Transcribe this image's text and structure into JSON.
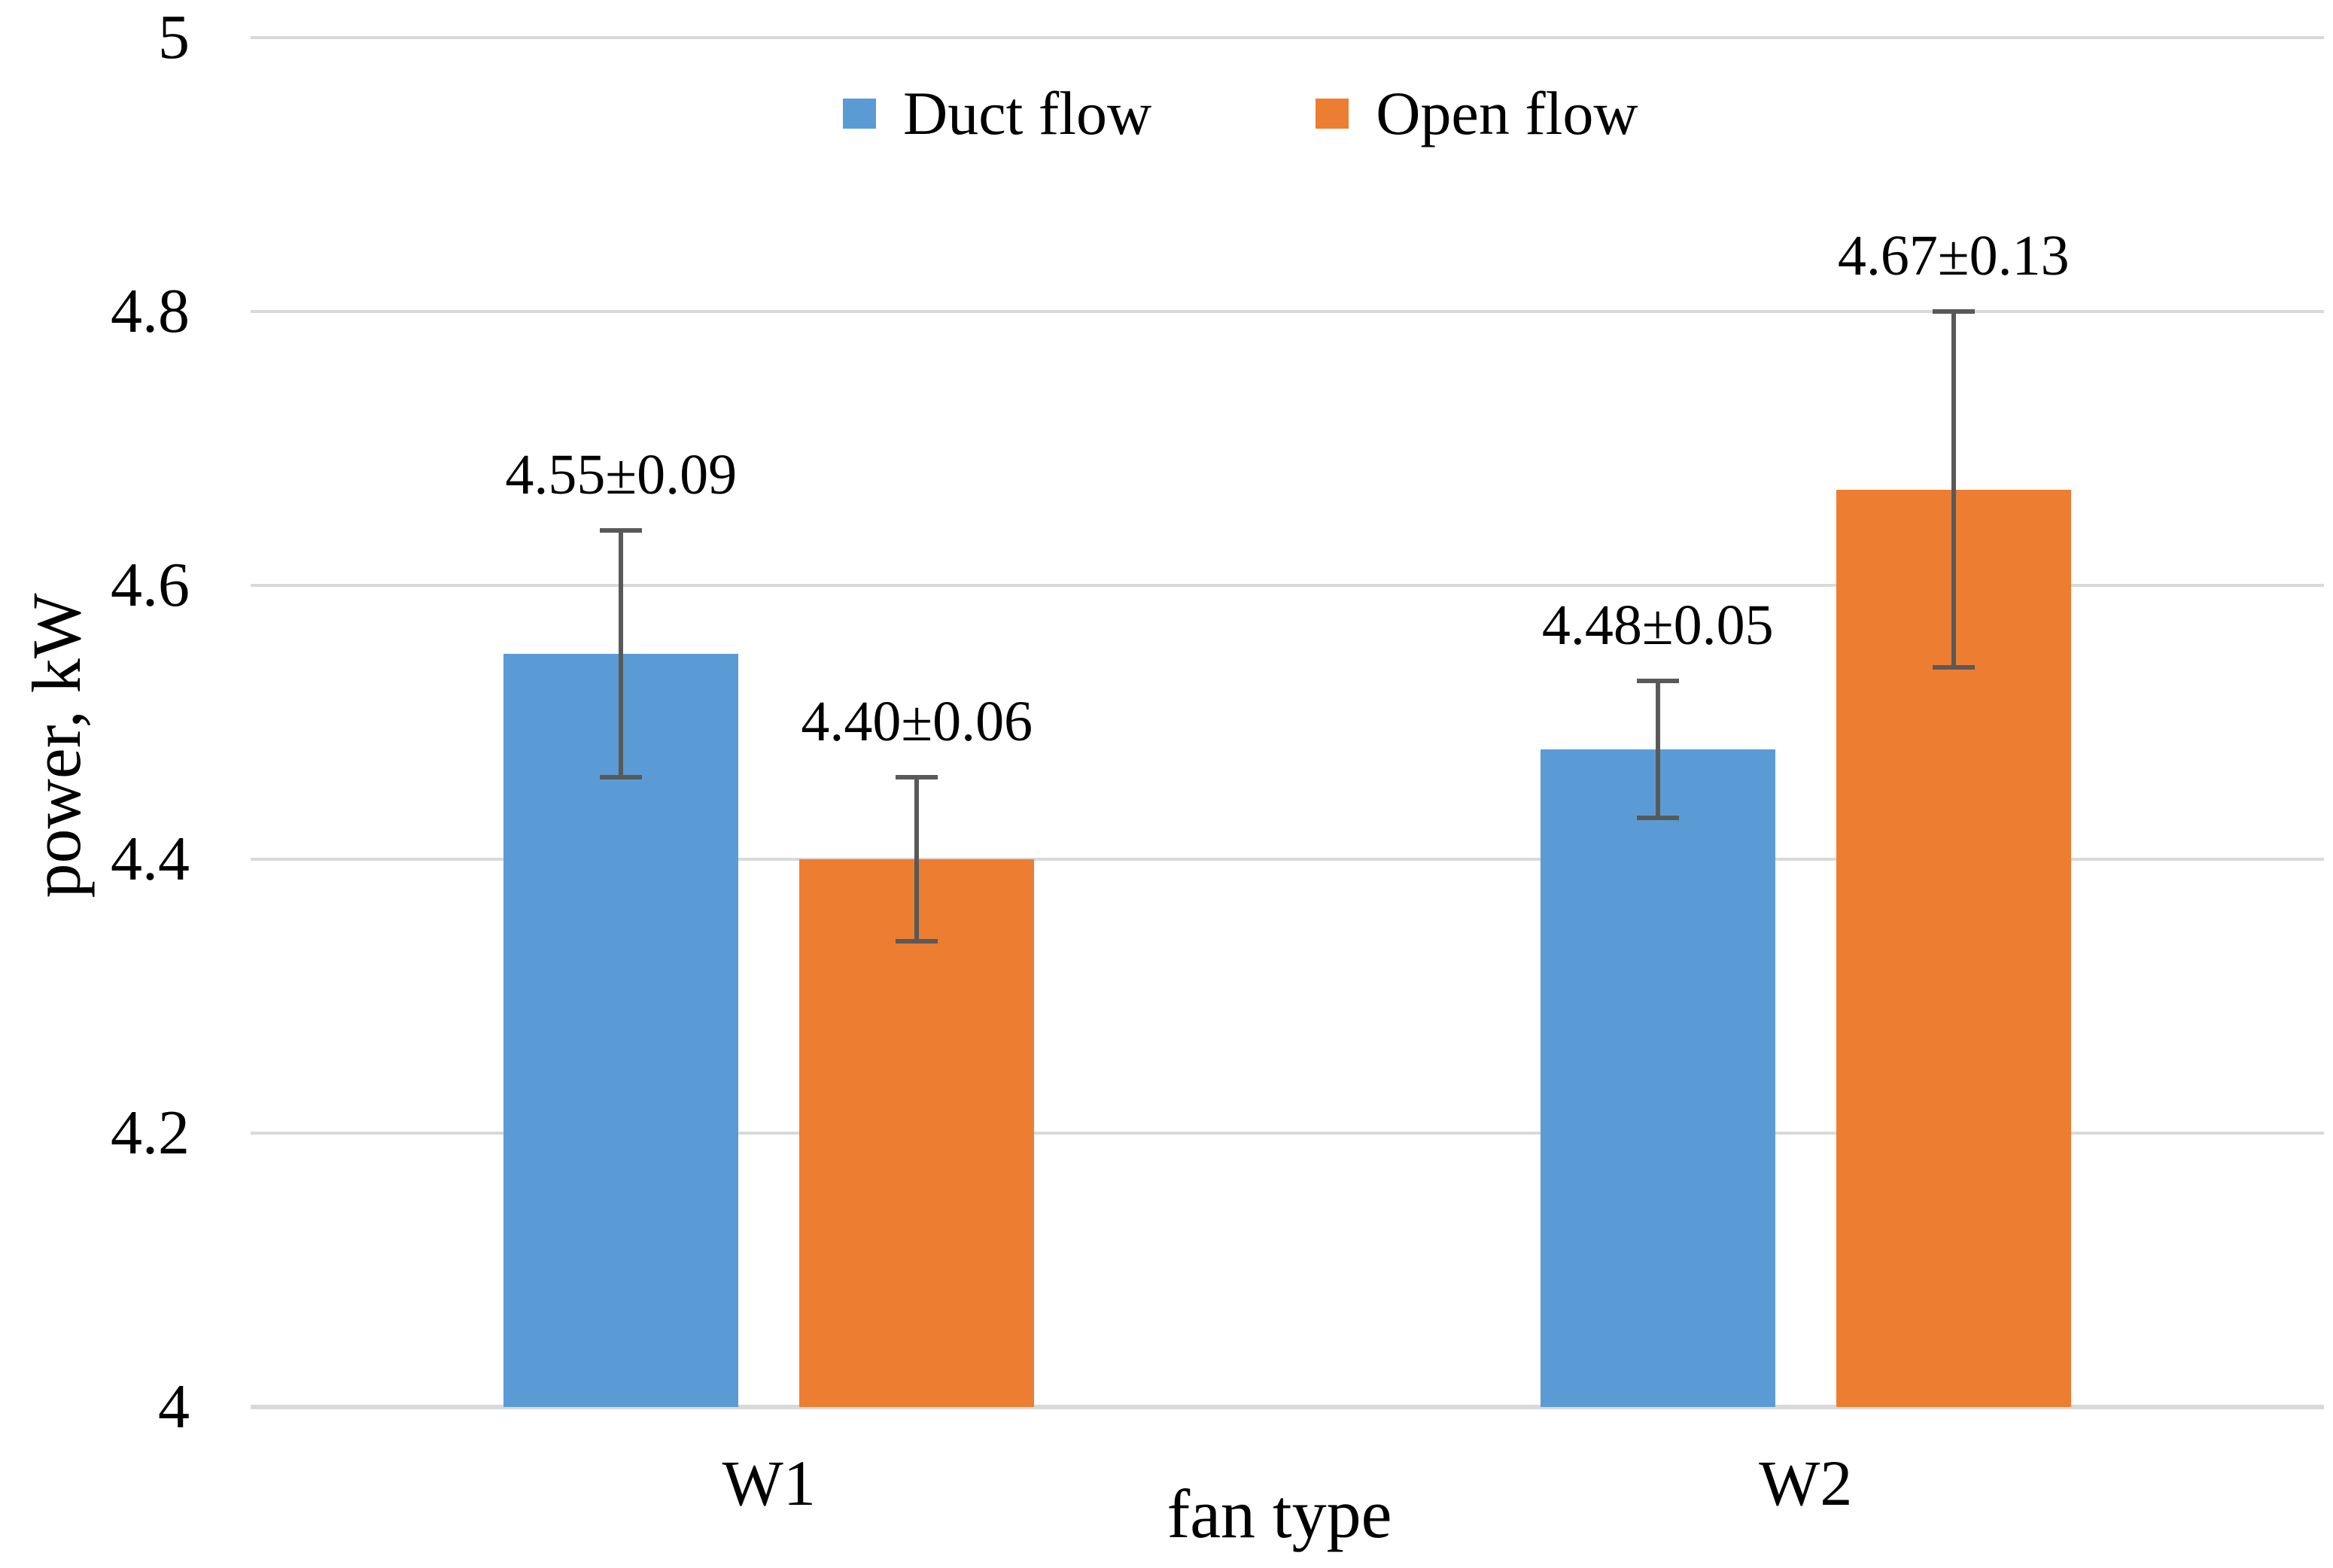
{
  "figure": {
    "background": "#ffffff"
  },
  "chart_data": {
    "type": "bar",
    "title": "",
    "xlabel": "fan type",
    "ylabel": "power, kW",
    "categories": [
      "W1",
      "W2"
    ],
    "series": [
      {
        "name": "Duct flow",
        "color": "#5B9BD5",
        "values": [
          4.55,
          4.48
        ],
        "errors": [
          0.09,
          0.05
        ],
        "data_labels": [
          "4.55±0.09",
          "4.48±0.05"
        ]
      },
      {
        "name": "Open flow",
        "color": "#ED7D31",
        "values": [
          4.4,
          4.67
        ],
        "errors": [
          0.06,
          0.13
        ],
        "data_labels": [
          "4.40±0.06",
          "4.67±0.13"
        ]
      }
    ],
    "ylim": [
      4,
      5
    ],
    "ytick_labels": [
      "5",
      "4.8",
      "4.6",
      "4.4",
      "4.2",
      "4"
    ],
    "ytick_values": [
      5,
      4.8,
      4.6,
      4.4,
      4.2,
      4
    ],
    "grid": "horizontal",
    "legend_position": "top-center",
    "colors": {
      "gridline": "#D9D9D9",
      "axis_line": "#D9D9D9",
      "error_bar": "#595959",
      "text": "#000000"
    }
  }
}
